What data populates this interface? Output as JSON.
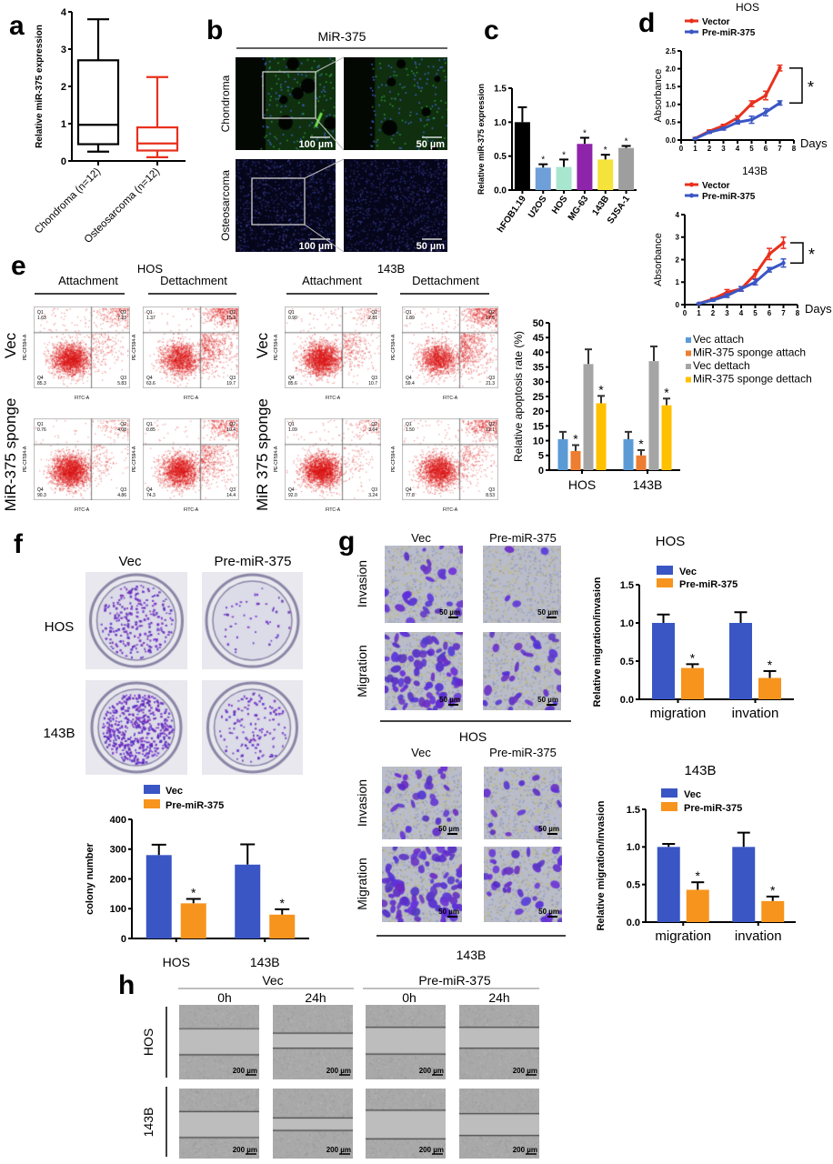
{
  "panel_labels": {
    "a": "a",
    "b": "b",
    "c": "c",
    "d": "d",
    "e": "e",
    "f": "f",
    "g": "g",
    "h": "h"
  },
  "significance_mark": "*",
  "panel_b": {
    "title": "MiR-375",
    "rows": [
      "Chondroma",
      "Osteosarcoma"
    ],
    "scale_bars": [
      "100 µm",
      "50 µm"
    ]
  },
  "panel_e": {
    "groups": [
      "HOS",
      "143B"
    ],
    "cols": [
      "Attachment",
      "Dettachment"
    ],
    "rows_hos": [
      "Vec",
      "MiR-375 sponge"
    ],
    "rows_143b": [
      "Vec",
      "MiR 375 sponge"
    ],
    "axis_x": "FITC-A",
    "axis_y": "PE-CF594-A",
    "quadrant_names": [
      "Q1",
      "Q2",
      "Q3",
      "Q4"
    ],
    "plots": [
      {
        "q1": "1.63",
        "q2": "7.23",
        "q3": "5.83",
        "q4": "85.3"
      },
      {
        "q1": "1.37",
        "q2": "15.3",
        "q3": "19.7",
        "q4": "63.6"
      },
      {
        "q1": "0.76",
        "q2": "4.08",
        "q3": "4.86",
        "q4": "90.3"
      },
      {
        "q1": "0.85",
        "q2": "10.4",
        "q3": "14.4",
        "q4": "74.3"
      },
      {
        "q1": "0.90",
        "q2": "2.81",
        "q3": "10.7",
        "q4": "85.6"
      },
      {
        "q1": "1.89",
        "q2": "17.5",
        "q3": "21.3",
        "q4": "59.4"
      },
      {
        "q1": "1.09",
        "q2": "3.64",
        "q3": "3.24",
        "q4": "92.0"
      },
      {
        "q1": "1.50",
        "q2": "12.1",
        "q3": "8.53",
        "q4": "77.8"
      }
    ]
  },
  "panel_f": {
    "cols": [
      "Vec",
      "Pre-miR-375"
    ],
    "rows": [
      "HOS",
      "143B"
    ]
  },
  "panel_g": {
    "cols": [
      "Vec",
      "Pre-miR-375"
    ],
    "rows": [
      "Invasion",
      "Migration"
    ],
    "groups": [
      "HOS",
      "143B"
    ],
    "scale_bar": "50 µm"
  },
  "panel_h": {
    "groups": [
      "Vec",
      "Pre-miR-375"
    ],
    "times": [
      "0h",
      "24h"
    ],
    "rows": [
      "HOS",
      "143B"
    ],
    "scale_bar": "200 µm"
  },
  "chart_data": [
    {
      "type": "box",
      "panel": "a",
      "ylabel": "Relative miR-375 expression",
      "ylim": [
        0,
        4
      ],
      "yticks": [
        "0",
        "1",
        "2",
        "3",
        "4"
      ],
      "categories": [
        "Chondroma (n=12)",
        "Osteosarcoma (n=12)"
      ],
      "boxes": [
        {
          "min": 0.25,
          "q1": 0.45,
          "median": 0.97,
          "q3": 2.7,
          "max": 3.8,
          "color": "#000000"
        },
        {
          "min": 0.1,
          "q1": 0.28,
          "median": 0.47,
          "q3": 0.9,
          "max": 2.25,
          "color": "#e8301c"
        }
      ]
    },
    {
      "type": "bar",
      "panel": "c",
      "ylabel": "Relative miR-375 expression",
      "ylim": [
        0,
        1.5
      ],
      "yticks": [
        "0.0",
        "0.5",
        "1.0",
        "1.5"
      ],
      "categories": [
        "hFOB1.19",
        "U2OS",
        "HOS",
        "MG-63",
        "143B",
        "SJSA-1"
      ],
      "series": [
        {
          "values": [
            1.0,
            0.33,
            0.34,
            0.68,
            0.45,
            0.62
          ],
          "errors": [
            0.22,
            0.05,
            0.11,
            0.09,
            0.07,
            0.03
          ],
          "colors": [
            "#000000",
            "#6f9fd8",
            "#a8e6cf",
            "#8e24aa",
            "#f5e33b",
            "#9e9e9e"
          ],
          "significant": [
            false,
            true,
            true,
            true,
            true,
            true
          ]
        }
      ]
    },
    {
      "type": "line",
      "panel": "d",
      "title": "HOS",
      "ylabel": "Absorbance",
      "xlabel": "Days",
      "xlim": [
        0,
        8
      ],
      "ylim": [
        0,
        2.5
      ],
      "xticks": [
        "0",
        "1",
        "2",
        "3",
        "4",
        "5",
        "6",
        "7",
        "8"
      ],
      "yticks": [
        "0.0",
        "0.5",
        "1.0",
        "1.5",
        "2.0",
        "2.5"
      ],
      "x": [
        1,
        2,
        3,
        4,
        5,
        6,
        7
      ],
      "series": [
        {
          "name": "Vector",
          "color": "#e8301c",
          "values": [
            0.05,
            0.25,
            0.4,
            0.62,
            1.02,
            1.25,
            2.02
          ],
          "errors": [
            0.02,
            0.03,
            0.04,
            0.06,
            0.08,
            0.12,
            0.08
          ]
        },
        {
          "name": "Pre-miR-375",
          "color": "#3a56c4",
          "values": [
            0.04,
            0.22,
            0.32,
            0.5,
            0.57,
            0.78,
            1.04
          ],
          "errors": [
            0.02,
            0.03,
            0.04,
            0.05,
            0.1,
            0.1,
            0.06
          ]
        }
      ],
      "significant": true
    },
    {
      "type": "line",
      "panel": "d",
      "title": "143B",
      "ylabel": "Absorbance",
      "xlabel": "Days",
      "xlim": [
        0,
        8
      ],
      "ylim": [
        0,
        4
      ],
      "xticks": [
        "0",
        "1",
        "2",
        "3",
        "4",
        "5",
        "6",
        "7",
        "8"
      ],
      "yticks": [
        "0",
        "1",
        "2",
        "3",
        "4"
      ],
      "x": [
        1,
        2,
        3,
        4,
        5,
        6,
        7
      ],
      "series": [
        {
          "name": "Vector",
          "color": "#e8301c",
          "values": [
            0.05,
            0.25,
            0.55,
            0.7,
            1.35,
            2.25,
            2.75
          ],
          "errors": [
            0.02,
            0.05,
            0.12,
            0.1,
            0.2,
            0.25,
            0.25
          ]
        },
        {
          "name": "Pre-miR-375",
          "color": "#3a56c4",
          "values": [
            0.05,
            0.2,
            0.4,
            0.7,
            1.0,
            1.55,
            1.85
          ],
          "errors": [
            0.02,
            0.04,
            0.08,
            0.1,
            0.12,
            0.1,
            0.18
          ]
        }
      ],
      "significant": true
    },
    {
      "type": "bar",
      "panel": "e",
      "ylabel": "Relative apoptosis rate (%)",
      "ylim": [
        0,
        50
      ],
      "yticks": [
        "0",
        "5",
        "10",
        "15",
        "20",
        "25",
        "30",
        "35",
        "40",
        "45",
        "50"
      ],
      "categories": [
        "HOS",
        "143B"
      ],
      "legend": "right",
      "series": [
        {
          "name": "Vec attach",
          "color": "#5b9bd5",
          "values": [
            10.5,
            10.5
          ],
          "errors": [
            2.5,
            2.5
          ],
          "significant": [
            false,
            false
          ]
        },
        {
          "name": "MiR-375 sponge attach",
          "color": "#ed7d31",
          "values": [
            6.5,
            5.0
          ],
          "errors": [
            2.0,
            1.8
          ],
          "significant": [
            true,
            true
          ]
        },
        {
          "name": "Vec dettach",
          "color": "#a5a5a5",
          "values": [
            36,
            37
          ],
          "errors": [
            5,
            5
          ],
          "significant": [
            false,
            false
          ]
        },
        {
          "name": "MiR-375 sponge dettach",
          "color": "#ffc000",
          "values": [
            22.7,
            22
          ],
          "errors": [
            2.5,
            2.3
          ],
          "significant": [
            true,
            true
          ]
        }
      ]
    },
    {
      "type": "bar",
      "panel": "f",
      "ylabel": "colony number",
      "ylim": [
        0,
        400
      ],
      "yticks": [
        "0",
        "100",
        "200",
        "300",
        "400"
      ],
      "categories": [
        "HOS",
        "143B"
      ],
      "legend": "top",
      "series": [
        {
          "name": "Vec",
          "color": "#3a56c4",
          "values": [
            280,
            248
          ],
          "errors": [
            35,
            68
          ],
          "significant": [
            false,
            false
          ]
        },
        {
          "name": "Pre-miR-375",
          "color": "#f7941d",
          "values": [
            118,
            80
          ],
          "errors": [
            15,
            18
          ],
          "significant": [
            true,
            true
          ]
        }
      ]
    },
    {
      "type": "bar",
      "panel": "g",
      "title": "HOS",
      "ylabel": "Relative migration/invasion",
      "ylim": [
        0,
        1.5
      ],
      "yticks": [
        "0.0",
        "0.5",
        "1.0",
        "1.5"
      ],
      "categories": [
        "migration",
        "invation"
      ],
      "legend": "top",
      "series": [
        {
          "name": "Vec",
          "color": "#3a56c4",
          "values": [
            1.0,
            1.0
          ],
          "errors": [
            0.11,
            0.14
          ],
          "significant": [
            false,
            false
          ]
        },
        {
          "name": "Pre-miR-375",
          "color": "#f7941d",
          "values": [
            0.41,
            0.28
          ],
          "errors": [
            0.05,
            0.09
          ],
          "significant": [
            true,
            true
          ]
        }
      ]
    },
    {
      "type": "bar",
      "panel": "g",
      "title": "143B",
      "ylabel": "Relative migration/invasion",
      "ylim": [
        0,
        1.5
      ],
      "yticks": [
        "0.0",
        "0.5",
        "1.0",
        "1.5"
      ],
      "categories": [
        "migration",
        "invation"
      ],
      "legend": "top",
      "series": [
        {
          "name": "Vec",
          "color": "#3a56c4",
          "values": [
            1.0,
            1.0
          ],
          "errors": [
            0.04,
            0.19
          ],
          "significant": [
            false,
            false
          ]
        },
        {
          "name": "Pre-miR-375",
          "color": "#f7941d",
          "values": [
            0.43,
            0.28
          ],
          "errors": [
            0.1,
            0.06
          ],
          "significant": [
            true,
            true
          ]
        }
      ]
    }
  ]
}
